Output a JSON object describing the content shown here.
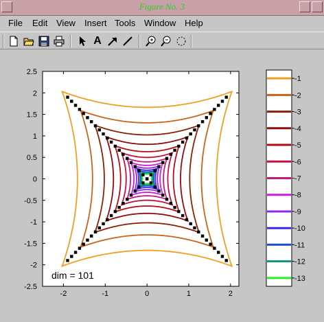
{
  "window": {
    "title": "Figure No. 3"
  },
  "menu": [
    "File",
    "Edit",
    "View",
    "Insert",
    "Tools",
    "Window",
    "Help"
  ],
  "toolbar": {
    "tools": [
      "new-figure",
      "open-file",
      "save",
      "print",
      "select-arrow",
      "insert-text",
      "insert-arrow",
      "insert-line",
      "zoom-in",
      "zoom-out",
      "rotate-3d"
    ],
    "text_tool_glyph": "A"
  },
  "chart_data": {
    "type": "contour",
    "xticks": [
      -2,
      -1,
      0,
      1,
      2
    ],
    "yticks": [
      2.5,
      2,
      1.5,
      1,
      0.5,
      0,
      -0.5,
      -1,
      -1.5,
      -2,
      -2.5
    ],
    "xlim": [
      -2.5,
      2.2
    ],
    "ylim": [
      -2.5,
      2.5
    ],
    "annotation": "dim = 101",
    "levels": [
      -1,
      -2,
      -3,
      -4,
      -5,
      -6,
      -7,
      -8,
      -9,
      -10,
      -11,
      -12,
      -13
    ],
    "level_colors": [
      "#f0a020",
      "#c86418",
      "#8c1e08",
      "#900c0c",
      "#b40e14",
      "#c8103c",
      "#c81880",
      "#c81ce0",
      "#8c28f0",
      "#3c28f0",
      "#1450d8",
      "#0c9480",
      "#28f028"
    ],
    "marker_color": "#000000"
  }
}
